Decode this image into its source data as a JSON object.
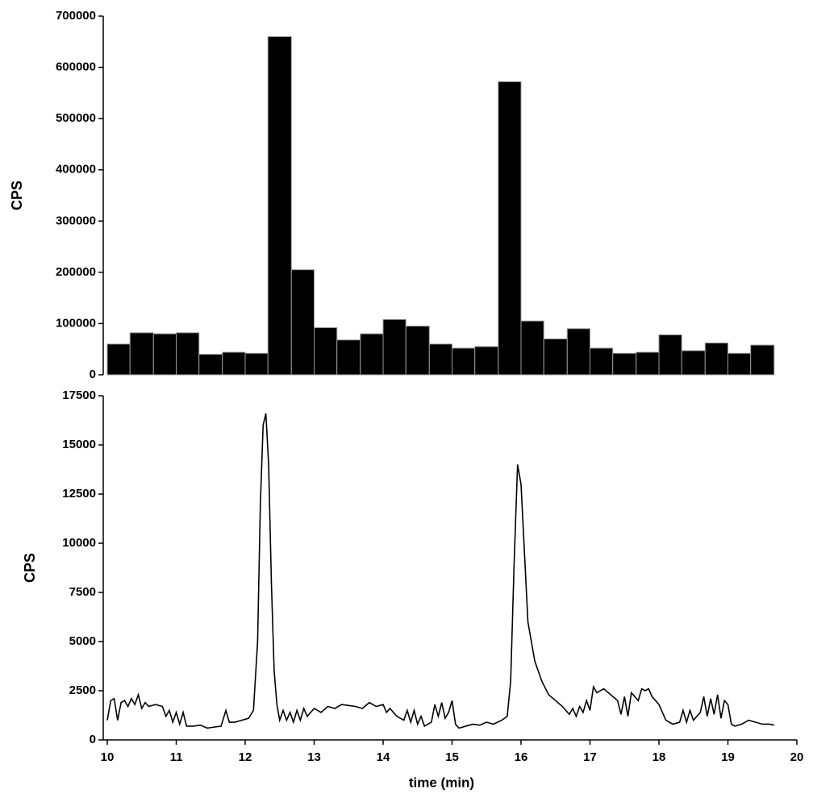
{
  "chart_data": [
    {
      "type": "histogram",
      "ylabel": "CPS",
      "bins": [
        10,
        10.33,
        10.67,
        11,
        11.33,
        11.67,
        12,
        12.33,
        12.67,
        13,
        13.33,
        13.67,
        14,
        14.33,
        14.67,
        15,
        15.33,
        15.67,
        16,
        16.33,
        16.67,
        17,
        17.33,
        17.67,
        18,
        18.33,
        18.67,
        19,
        19.33,
        19.67
      ],
      "values": [
        60000,
        82000,
        80000,
        82000,
        40000,
        44000,
        42000,
        660000,
        205000,
        92000,
        68000,
        80000,
        108000,
        95000,
        60000,
        52000,
        55000,
        572000,
        105000,
        70000,
        90000,
        52000,
        42000,
        44000,
        78000,
        47000,
        62000,
        42000,
        58000
      ],
      "color": "#000000",
      "xlim": [
        10,
        20
      ],
      "ylim": [
        0,
        700000
      ],
      "yticks": [
        0,
        100000,
        200000,
        300000,
        400000,
        500000,
        600000,
        700000
      ]
    },
    {
      "type": "line",
      "ylabel": "CPS",
      "xlabel": "time (min)",
      "color": "#000000",
      "x": [
        10.0,
        10.05,
        10.1,
        10.15,
        10.2,
        10.25,
        10.3,
        10.35,
        10.4,
        10.45,
        10.5,
        10.55,
        10.6,
        10.7,
        10.8,
        10.85,
        10.9,
        10.95,
        11.0,
        11.05,
        11.1,
        11.15,
        11.25,
        11.35,
        11.45,
        11.55,
        11.65,
        11.72,
        11.77,
        11.85,
        11.95,
        12.05,
        12.12,
        12.18,
        12.22,
        12.26,
        12.3,
        12.34,
        12.38,
        12.42,
        12.46,
        12.5,
        12.55,
        12.6,
        12.65,
        12.7,
        12.75,
        12.8,
        12.85,
        12.9,
        12.95,
        13.0,
        13.1,
        13.2,
        13.3,
        13.4,
        13.5,
        13.6,
        13.7,
        13.8,
        13.9,
        14.0,
        14.05,
        14.1,
        14.2,
        14.3,
        14.35,
        14.4,
        14.45,
        14.5,
        14.55,
        14.6,
        14.7,
        14.75,
        14.8,
        14.85,
        14.9,
        14.95,
        15.0,
        15.05,
        15.1,
        15.2,
        15.3,
        15.4,
        15.5,
        15.6,
        15.72,
        15.8,
        15.85,
        15.9,
        15.95,
        16.0,
        16.05,
        16.1,
        16.2,
        16.3,
        16.4,
        16.5,
        16.6,
        16.7,
        16.75,
        16.8,
        16.85,
        16.9,
        16.95,
        17.0,
        17.05,
        17.1,
        17.2,
        17.3,
        17.4,
        17.45,
        17.5,
        17.55,
        17.6,
        17.7,
        17.75,
        17.8,
        17.85,
        17.9,
        18.0,
        18.05,
        18.1,
        18.2,
        18.3,
        18.35,
        18.4,
        18.45,
        18.5,
        18.6,
        18.65,
        18.7,
        18.75,
        18.8,
        18.85,
        18.9,
        18.95,
        19.0,
        19.05,
        19.1,
        19.2,
        19.3,
        19.4,
        19.5,
        19.6,
        19.67
      ],
      "values": [
        1000,
        2000,
        2100,
        1000,
        1900,
        2000,
        1700,
        2100,
        1800,
        2300,
        1600,
        1900,
        1700,
        1800,
        1700,
        1200,
        1500,
        900,
        1400,
        800,
        1400,
        700,
        700,
        750,
        600,
        650,
        700,
        1500,
        900,
        900,
        1000,
        1100,
        1500,
        5000,
        12000,
        16000,
        16600,
        14000,
        8000,
        3500,
        1800,
        1000,
        1500,
        1000,
        1400,
        900,
        1500,
        1000,
        1600,
        1200,
        1400,
        1600,
        1400,
        1700,
        1600,
        1800,
        1750,
        1700,
        1600,
        1900,
        1700,
        1800,
        1400,
        1600,
        1200,
        1000,
        1500,
        900,
        1500,
        800,
        1200,
        700,
        900,
        1800,
        1200,
        1900,
        1100,
        1400,
        2000,
        800,
        600,
        700,
        800,
        750,
        900,
        800,
        1000,
        1200,
        3000,
        9000,
        14000,
        13000,
        9500,
        6000,
        4000,
        3000,
        2300,
        2000,
        1700,
        1300,
        1600,
        1200,
        1700,
        1400,
        2000,
        1500,
        2700,
        2400,
        2600,
        2300,
        2000,
        1300,
        2200,
        1200,
        2400,
        2000,
        2600,
        2500,
        2600,
        2200,
        1800,
        1400,
        1000,
        800,
        900,
        1500,
        900,
        1500,
        1000,
        1400,
        2200,
        1200,
        2100,
        1300,
        2300,
        1100,
        2000,
        1800,
        800,
        700,
        800,
        1000,
        900,
        800,
        800,
        750
      ],
      "xlim": [
        10,
        20
      ],
      "ylim": [
        0,
        17500
      ],
      "xticks": [
        10,
        11,
        12,
        13,
        14,
        15,
        16,
        17,
        18,
        19,
        20
      ],
      "yticks": [
        0,
        2500,
        5000,
        7500,
        10000,
        12500,
        15000,
        17500
      ]
    }
  ]
}
